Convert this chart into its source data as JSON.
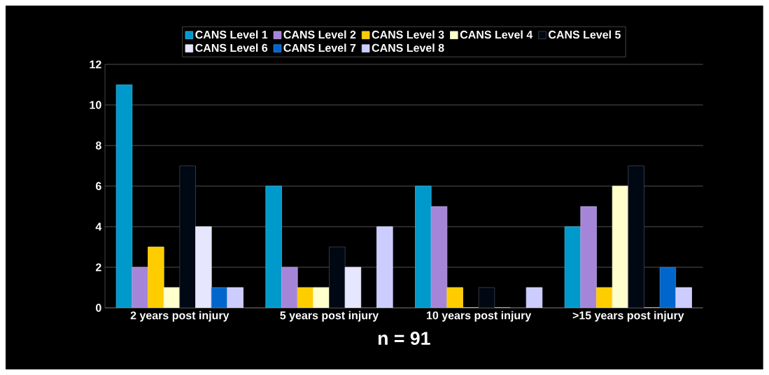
{
  "chart_data": {
    "type": "bar",
    "xlabel": "n = 91",
    "categories": [
      "2 years post injury",
      "5 years post injury",
      "10 years post injury",
      ">15 years post injury"
    ],
    "series": [
      {
        "name": "CANS Level 1",
        "color": "#0099cc",
        "values": [
          11,
          6,
          6,
          4
        ]
      },
      {
        "name": "CANS Level 2",
        "color": "#a585d8",
        "values": [
          2,
          2,
          5,
          5
        ]
      },
      {
        "name": "CANS Level 3",
        "color": "#ffcc00",
        "values": [
          3,
          1,
          1,
          1
        ]
      },
      {
        "name": "CANS Level 4",
        "color": "#ffffcc",
        "values": [
          1,
          1,
          0,
          6
        ]
      },
      {
        "name": "CANS Level 5",
        "color": "#000814",
        "values": [
          7,
          3,
          1,
          7
        ]
      },
      {
        "name": "CANS Level 6",
        "color": "#e6e6ff",
        "values": [
          4,
          2,
          0,
          0
        ]
      },
      {
        "name": "CANS Level 7",
        "color": "#0066cc",
        "values": [
          1,
          0,
          0,
          2
        ]
      },
      {
        "name": "CANS Level 8",
        "color": "#ccccff",
        "values": [
          1,
          4,
          1,
          1
        ]
      }
    ],
    "ylim": [
      0,
      12
    ],
    "yticks": [
      0,
      2,
      4,
      6,
      8,
      10,
      12
    ],
    "grid": "y",
    "legend": "top"
  }
}
